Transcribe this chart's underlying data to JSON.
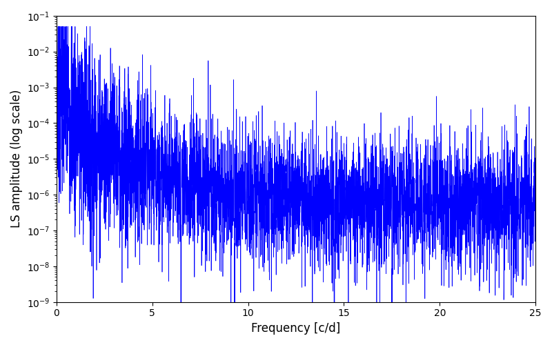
{
  "xlabel": "Frequency [c/d]",
  "ylabel": "LS amplitude (log scale)",
  "xlim": [
    0,
    25
  ],
  "ylim": [
    1e-09,
    0.1
  ],
  "line_color": "#0000ff",
  "line_width": 0.5,
  "background_color": "#ffffff",
  "freq_max": 25.0,
  "n_points": 5000,
  "seed": 7,
  "figsize": [
    8.0,
    5.0
  ],
  "dpi": 100
}
